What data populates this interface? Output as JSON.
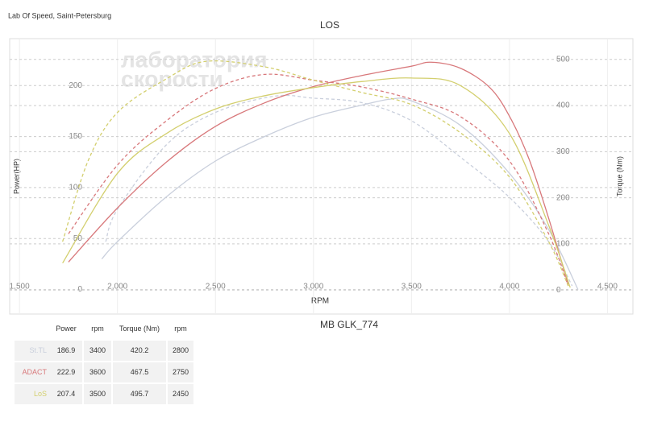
{
  "header": {
    "lab": "Lab Of Speed, Saint-Petersburg",
    "watermark": [
      "лаборатория",
      "скорости"
    ]
  },
  "chart_data": {
    "type": "dyno",
    "title": "LOS",
    "subtitle": "MB GLK_774",
    "x_label": "RPM",
    "y_label": "Power(HP)",
    "y2_label": "Torque (Nm)",
    "xlim": [
      1450,
      4630
    ],
    "xticks": [
      {
        "value": 1500,
        "label": "1,500"
      },
      {
        "value": 2000,
        "label": "2,000"
      },
      {
        "value": 2500,
        "label": "2,500"
      },
      {
        "value": 3000,
        "label": "3,000"
      },
      {
        "value": 3500,
        "label": "3,500"
      },
      {
        "value": 4000,
        "label": "4,000"
      },
      {
        "value": 4500,
        "label": "4,500"
      }
    ],
    "ylim": [
      -24,
      246
    ],
    "yticks": [
      0,
      50,
      100,
      150,
      200
    ],
    "y2lim": [
      -52,
      545
    ],
    "y2ticks": [
      0,
      100,
      200,
      300,
      400,
      500
    ],
    "grid": true,
    "series": [
      {
        "name": "St.TL",
        "color": "#c9cfdc",
        "power": {
          "x": [
            1920,
            2000,
            2250,
            2500,
            2750,
            3000,
            3250,
            3400,
            3500,
            3750,
            4000,
            4200,
            4350
          ],
          "values": [
            30,
            47,
            91,
            126,
            150,
            169,
            181,
            186.9,
            185,
            161,
            114,
            59,
            0
          ]
        },
        "torque": {
          "axis": "y2",
          "x": [
            1940,
            2000,
            2250,
            2500,
            2800,
            3000,
            3250,
            3500,
            3750,
            4000,
            4200,
            4320
          ],
          "values": [
            105,
            175,
            315,
            385,
            420.2,
            416,
            406,
            367,
            288,
            201,
            105,
            9
          ]
        }
      },
      {
        "name": "ADACT",
        "color": "#d8787b",
        "power": {
          "x": [
            1750,
            2000,
            2250,
            2500,
            2750,
            3000,
            3250,
            3500,
            3600,
            3750,
            3900,
            4000,
            4100,
            4200,
            4300
          ],
          "values": [
            27,
            80,
            125,
            160,
            183,
            199,
            210,
            219,
            222.9,
            217,
            198,
            170,
            128,
            70,
            5
          ]
        },
        "torque": {
          "axis": "y2",
          "x": [
            1750,
            2000,
            2250,
            2500,
            2750,
            3000,
            3250,
            3500,
            3750,
            4000,
            4200,
            4300
          ],
          "values": [
            122,
            271,
            367,
            437,
            467.5,
            455,
            440,
            414,
            376,
            280,
            122,
            9
          ]
        }
      },
      {
        "name": "LoS",
        "color": "#d3cf6e",
        "power": {
          "x": [
            1720,
            2000,
            2250,
            2500,
            2750,
            3000,
            3250,
            3500,
            3750,
            4000,
            4200,
            4310
          ],
          "values": [
            26,
            114,
            153,
            177,
            190,
            198,
            204,
            207.4,
            200,
            153,
            63,
            2
          ]
        },
        "torque": {
          "axis": "y2",
          "x": [
            1720,
            1850,
            2000,
            2250,
            2450,
            2750,
            3000,
            3250,
            3500,
            3750,
            4000,
            4200,
            4300
          ],
          "values": [
            105,
            280,
            385,
            458,
            495.7,
            484,
            455,
            428,
            402,
            341,
            245,
            105,
            9
          ]
        }
      }
    ]
  },
  "table": {
    "columns": [
      "Power",
      "rpm",
      "Torque (Nm)",
      "rpm"
    ],
    "rows": [
      [
        186.9,
        3400,
        420.2,
        2800
      ],
      [
        222.9,
        3600,
        467.5,
        2750
      ],
      [
        207.4,
        3500,
        495.7,
        2450
      ]
    ]
  }
}
